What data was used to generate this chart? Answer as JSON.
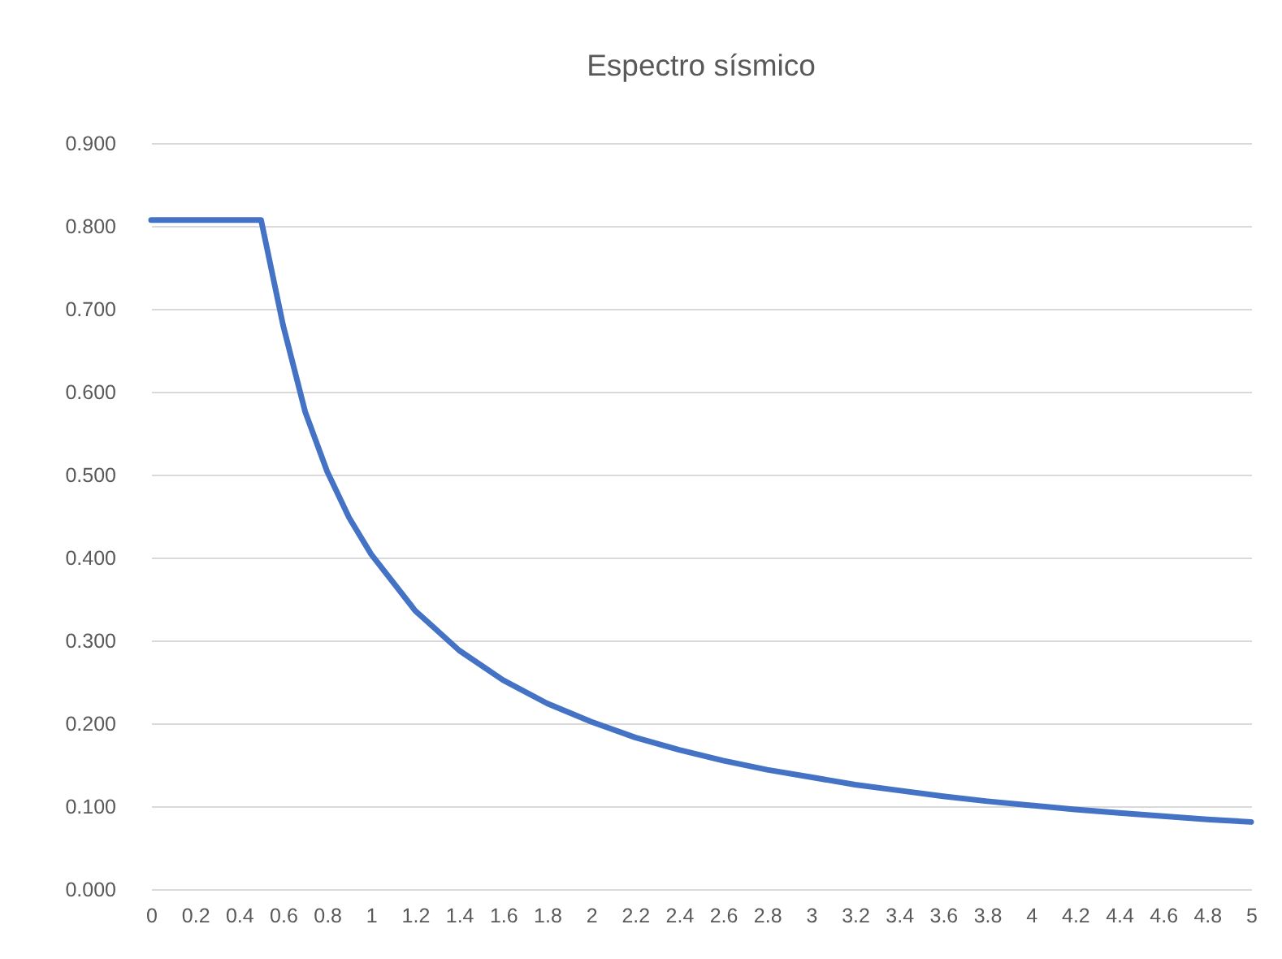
{
  "chart_data": {
    "type": "line",
    "title": "Espectro sísmico",
    "x": [
      0,
      0.5,
      0.6,
      0.7,
      0.8,
      0.9,
      1,
      1.2,
      1.4,
      1.6,
      1.8,
      2,
      2.2,
      2.4,
      2.6,
      2.8,
      3,
      3.2,
      3.4,
      3.6,
      3.8,
      4,
      4.2,
      4.4,
      4.6,
      4.8,
      5
    ],
    "series": [
      {
        "color": "#4472c4",
        "values": [
          0.807,
          0.807,
          0.68,
          0.576,
          0.504,
          0.448,
          0.404,
          0.336,
          0.288,
          0.252,
          0.224,
          0.202,
          0.183,
          0.168,
          0.155,
          0.144,
          0.135,
          0.126,
          0.119,
          0.112,
          0.106,
          0.101,
          0.096,
          0.092,
          0.088,
          0.084,
          0.081
        ]
      }
    ],
    "xlim": [
      0,
      5
    ],
    "xticks": [
      0,
      0.2,
      0.4,
      0.6,
      0.8,
      1,
      1.2,
      1.4,
      1.6,
      1.8,
      2,
      2.2,
      2.4,
      2.6,
      2.8,
      3,
      3.2,
      3.4,
      3.6,
      3.8,
      4,
      4.2,
      4.4,
      4.6,
      4.8,
      5
    ],
    "ylim": [
      0,
      0.9
    ],
    "yticks": [
      {
        "value": 0,
        "label": "0.000"
      },
      {
        "value": 0.1,
        "label": "0.100"
      },
      {
        "value": 0.2,
        "label": "0.200"
      },
      {
        "value": 0.3,
        "label": "0.300"
      },
      {
        "value": 0.4,
        "label": "0.400"
      },
      {
        "value": 0.5,
        "label": "0.500"
      },
      {
        "value": 0.6,
        "label": "0.600"
      },
      {
        "value": 0.7,
        "label": "0.700"
      },
      {
        "value": 0.8,
        "label": "0.800"
      },
      {
        "value": 0.9,
        "label": "0.900"
      }
    ],
    "grid": "y",
    "line_style": "solid",
    "marker": "none",
    "legend": false
  }
}
